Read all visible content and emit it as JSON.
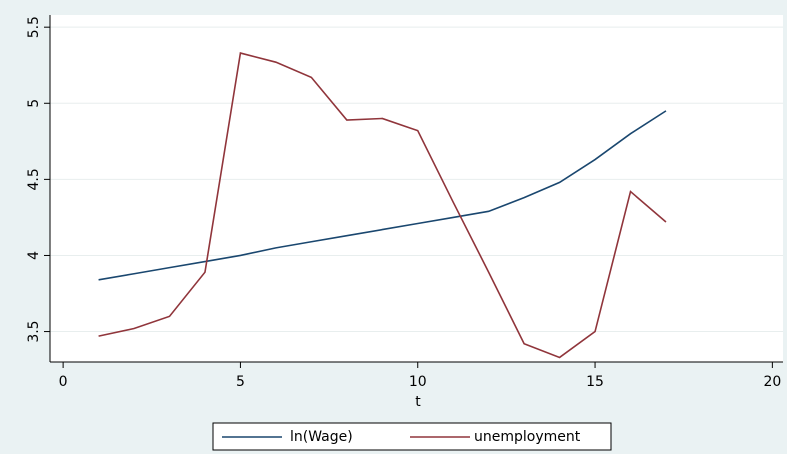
{
  "chart_data": {
    "type": "line",
    "x_label": "t",
    "x": [
      1,
      2,
      3,
      4,
      5,
      6,
      7,
      8,
      9,
      10,
      11,
      12,
      13,
      14,
      15,
      16,
      17
    ],
    "series": [
      {
        "name": "ln(Wage)",
        "color": "#1a476f",
        "values": [
          3.84,
          3.88,
          3.92,
          3.96,
          4.0,
          4.05,
          4.09,
          4.13,
          4.17,
          4.21,
          4.25,
          4.29,
          4.38,
          4.48,
          4.63,
          4.8,
          4.95
        ]
      },
      {
        "name": "unemployment",
        "color": "#90353b",
        "values": [
          3.47,
          3.52,
          3.6,
          3.89,
          5.33,
          5.27,
          5.17,
          4.89,
          4.9,
          4.82,
          4.35,
          3.89,
          3.42,
          3.33,
          3.5,
          4.42,
          4.22
        ]
      }
    ],
    "xlim": [
      -0.37,
      20.3
    ],
    "xticks": [
      0,
      5,
      10,
      15,
      20
    ],
    "ylim": [
      3.3,
      5.58
    ],
    "yticks": [
      3.5,
      4,
      4.5,
      5,
      5.5
    ],
    "grid": true,
    "legend": "bottom"
  }
}
